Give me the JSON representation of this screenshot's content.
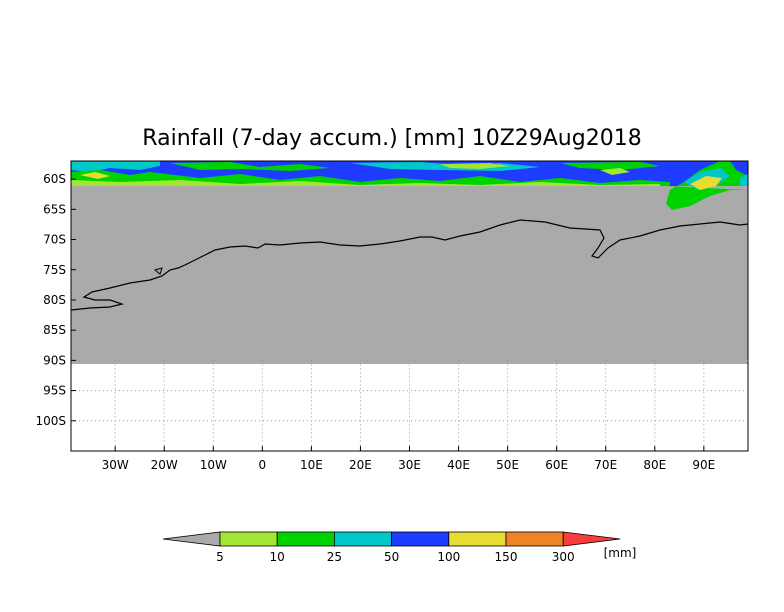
{
  "title": "Rainfall (7-day accum.) [mm] 10Z29Aug2018",
  "colors": {
    "land_nodata": "#aaaaaa",
    "frame": "#000000",
    "grid": "#888888"
  },
  "axes": {
    "lat_labels": [
      "60S",
      "65S",
      "70S",
      "75S",
      "80S",
      "85S",
      "90S",
      "95S",
      "100S"
    ],
    "lon_labels": [
      "30W",
      "20W",
      "10W",
      "0",
      "10E",
      "20E",
      "30E",
      "40E",
      "50E",
      "60E",
      "70E",
      "80E",
      "90E"
    ],
    "lon_range_deg": [
      -39,
      99
    ],
    "lat_range_deg": [
      -57,
      -105
    ]
  },
  "colorbar": {
    "labels": [
      "5",
      "10",
      "25",
      "50",
      "100",
      "150",
      "300"
    ],
    "unit": "[mm]",
    "colors": [
      "#aaaaaa",
      "#a0e632",
      "#00d200",
      "#00c8c8",
      "#1e3cff",
      "#e6dc32",
      "#f08228",
      "#fa3c3c"
    ]
  }
}
